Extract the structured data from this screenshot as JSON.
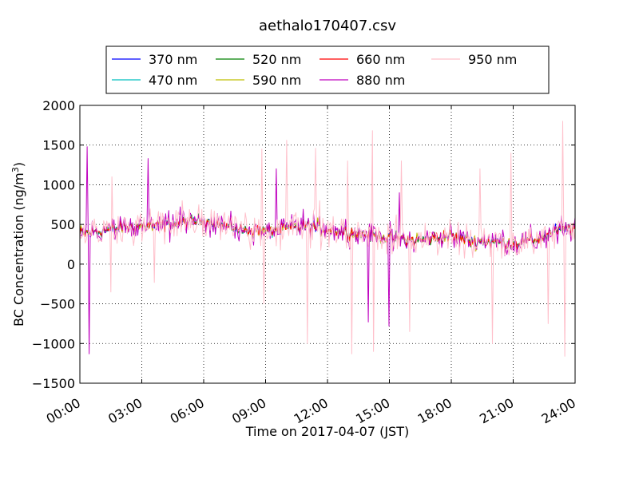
{
  "chart_data": {
    "type": "line",
    "title": "aethalo170407.csv",
    "xlabel": "Time on 2017-04-07 (JST)",
    "ylabel_main": "BC Concentration (ng/m",
    "ylabel_sup": "3",
    "ylabel_close": ")",
    "xlim": [
      "00:00",
      "24:00"
    ],
    "ylim": [
      -1500,
      2000
    ],
    "x_ticks": [
      "00:00",
      "03:00",
      "06:00",
      "09:00",
      "12:00",
      "15:00",
      "18:00",
      "21:00",
      "24:00"
    ],
    "y_ticks": [
      2000,
      1500,
      1000,
      500,
      0,
      -500,
      -1000,
      -1500
    ],
    "y_tick_labels": [
      "2000",
      "1500",
      "1000",
      "500",
      "0",
      "−500",
      "−1000",
      "−1500"
    ],
    "grid": true,
    "legend_placement": "top-center",
    "series": [
      {
        "name": "370 nm",
        "color": "#0000ff"
      },
      {
        "name": "470 nm",
        "color": "#00bfbf"
      },
      {
        "name": "520 nm",
        "color": "#008000"
      },
      {
        "name": "590 nm",
        "color": "#bfbf00"
      },
      {
        "name": "660 nm",
        "color": "#ff0000"
      },
      {
        "name": "880 nm",
        "color": "#bf00bf"
      },
      {
        "name": "950 nm",
        "color": "#ffc0cb"
      }
    ],
    "hourly_baseline_ng_m3": [
      380,
      420,
      460,
      480,
      490,
      520,
      560,
      480,
      430,
      420,
      450,
      480,
      440,
      400,
      380,
      330,
      300,
      320,
      360,
      290,
      280,
      270,
      300,
      420,
      460
    ],
    "extremes_950nm": [
      {
        "hour": 1.5,
        "value": -350
      },
      {
        "hour": 1.55,
        "value": 1100
      },
      {
        "hour": 3.6,
        "value": -230
      },
      {
        "hour": 8.8,
        "value": 1450
      },
      {
        "hour": 8.9,
        "value": -500
      },
      {
        "hour": 10.0,
        "value": 1560
      },
      {
        "hour": 11.0,
        "value": -1000
      },
      {
        "hour": 11.4,
        "value": 1460
      },
      {
        "hour": 13.0,
        "value": 1300
      },
      {
        "hour": 13.2,
        "value": -1130
      },
      {
        "hour": 14.2,
        "value": 1680
      },
      {
        "hour": 14.25,
        "value": -1100
      },
      {
        "hour": 15.6,
        "value": 1300
      },
      {
        "hour": 16.0,
        "value": -850
      },
      {
        "hour": 19.4,
        "value": 1200
      },
      {
        "hour": 20.0,
        "value": -1000
      },
      {
        "hour": 20.9,
        "value": 1400
      },
      {
        "hour": 22.7,
        "value": -750
      },
      {
        "hour": 23.4,
        "value": 1800
      },
      {
        "hour": 23.5,
        "value": -1160
      }
    ],
    "extremes_880nm": [
      {
        "hour": 0.35,
        "value": 1480
      },
      {
        "hour": 0.45,
        "value": -1130
      },
      {
        "hour": 3.3,
        "value": 1330
      },
      {
        "hour": 9.5,
        "value": 1200
      },
      {
        "hour": 14.0,
        "value": -730
      },
      {
        "hour": 15.0,
        "value": -780
      },
      {
        "hour": 15.5,
        "value": 900
      }
    ]
  }
}
